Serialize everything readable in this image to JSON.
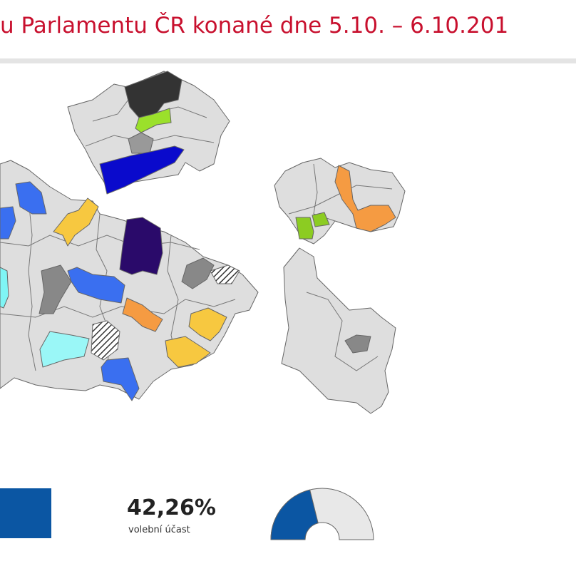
{
  "header": {
    "title": "u Parlamentu ČR konané dne 5.10. – 6.10.201"
  },
  "turnout": {
    "value": 42.26,
    "label": "42,26%",
    "caption": "volební účast"
  }
}
